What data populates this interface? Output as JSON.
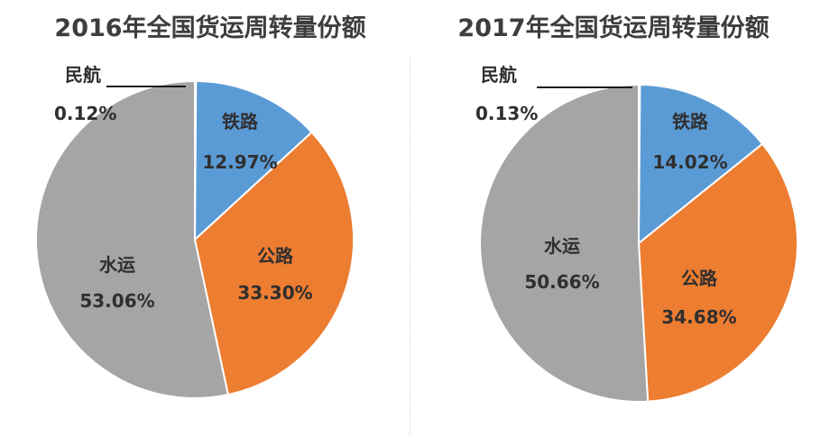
{
  "chart_data": [
    {
      "type": "pie",
      "title": "2016年全国货运周转量份额",
      "slices": [
        {
          "label": "民航",
          "value": 0.12,
          "value_label": "0.12%",
          "color": "#F2C12E"
        },
        {
          "label": "铁路",
          "value": 12.97,
          "value_label": "12.97%",
          "color": "#5B9BD5"
        },
        {
          "label": "公路",
          "value": 33.3,
          "value_label": "33.30%",
          "color": "#ED7D31"
        },
        {
          "label": "水运",
          "value": 53.06,
          "value_label": "53.06%",
          "color": "#A5A5A5"
        }
      ]
    },
    {
      "type": "pie",
      "title": "2017年全国货运周转量份额",
      "slices": [
        {
          "label": "民航",
          "value": 0.13,
          "value_label": "0.13%",
          "color": "#F2C12E"
        },
        {
          "label": "铁路",
          "value": 14.02,
          "value_label": "14.02%",
          "color": "#5B9BD5"
        },
        {
          "label": "公路",
          "value": 34.68,
          "value_label": "34.68%",
          "color": "#ED7D31"
        },
        {
          "label": "水运",
          "value": 50.66,
          "value_label": "50.66%",
          "color": "#A5A5A5"
        }
      ]
    }
  ]
}
